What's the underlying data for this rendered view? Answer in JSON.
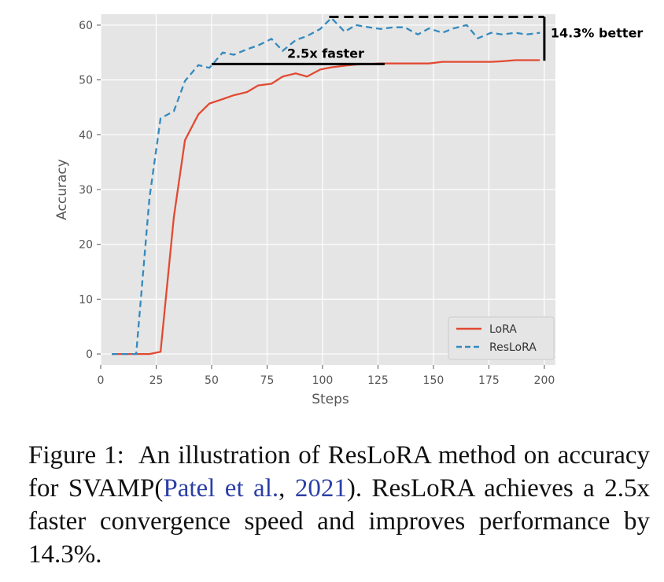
{
  "chart_data": {
    "type": "line",
    "xlabel": "Steps",
    "ylabel": "Accuracy",
    "xlim": [
      0,
      205
    ],
    "ylim": [
      -2,
      62
    ],
    "xticks": [
      0,
      25,
      50,
      75,
      100,
      125,
      150,
      175,
      200
    ],
    "yticks": [
      0,
      10,
      20,
      30,
      40,
      50,
      60
    ],
    "grid": true,
    "legend_position": "lower-right",
    "series": [
      {
        "name": "LoRA",
        "color": "#e24a33",
        "style": "solid",
        "x": [
          5,
          11,
          16,
          22,
          27,
          33,
          38,
          44,
          49,
          55,
          60,
          66,
          71,
          77,
          82,
          88,
          93,
          99,
          104,
          110,
          115,
          121,
          126,
          132,
          137,
          143,
          148,
          154,
          159,
          165,
          170,
          176,
          181,
          187,
          192,
          198
        ],
        "y": [
          0,
          0,
          0,
          0,
          0.4,
          25,
          39,
          43.7,
          45.7,
          46.5,
          47.2,
          47.8,
          49,
          49.3,
          50.6,
          51.2,
          50.6,
          51.9,
          52.3,
          52.6,
          52.8,
          52.9,
          53,
          53,
          53,
          53,
          53,
          53.3,
          53.3,
          53.3,
          53.3,
          53.3,
          53.4,
          53.6,
          53.6,
          53.6
        ]
      },
      {
        "name": "ResLoRA",
        "color": "#348abd",
        "style": "dashed",
        "x": [
          5,
          11,
          16,
          22,
          27,
          33,
          38,
          44,
          49,
          55,
          60,
          66,
          71,
          77,
          82,
          88,
          93,
          99,
          104,
          110,
          115,
          121,
          126,
          132,
          137,
          143,
          148,
          154,
          159,
          165,
          170,
          176,
          181,
          187,
          192,
          198
        ],
        "y": [
          0,
          0,
          0,
          28.5,
          43,
          44.3,
          49.8,
          52.7,
          52.2,
          55,
          54.6,
          55.6,
          56.3,
          57.5,
          55.3,
          57.3,
          58,
          59.3,
          61.3,
          58.8,
          60,
          59.6,
          59.3,
          59.6,
          59.6,
          58.3,
          59.4,
          58.6,
          59.4,
          60,
          57.6,
          58.6,
          58.3,
          58.6,
          58.3,
          58.6
        ]
      }
    ],
    "annotations": [
      {
        "text": "2.5x faster",
        "segment_x": [
          50,
          128
        ],
        "segment_y": 52.9
      },
      {
        "text": "14.3% better",
        "x": 200,
        "segment_y": [
          53.5,
          61.5
        ],
        "reference_y": 61.5,
        "reference_x": [
          103,
          200
        ]
      }
    ]
  },
  "caption": {
    "label": "Figure 1:",
    "text_before_cite": "An illustration of ResLoRA method on accuracy for SVAMP(",
    "cite_author": "Patel et al.",
    "cite_sep": ", ",
    "cite_year": "2021",
    "text_after_cite": "). ResLoRA achieves a 2.5x faster convergence speed and improves performance by 14.3%."
  }
}
